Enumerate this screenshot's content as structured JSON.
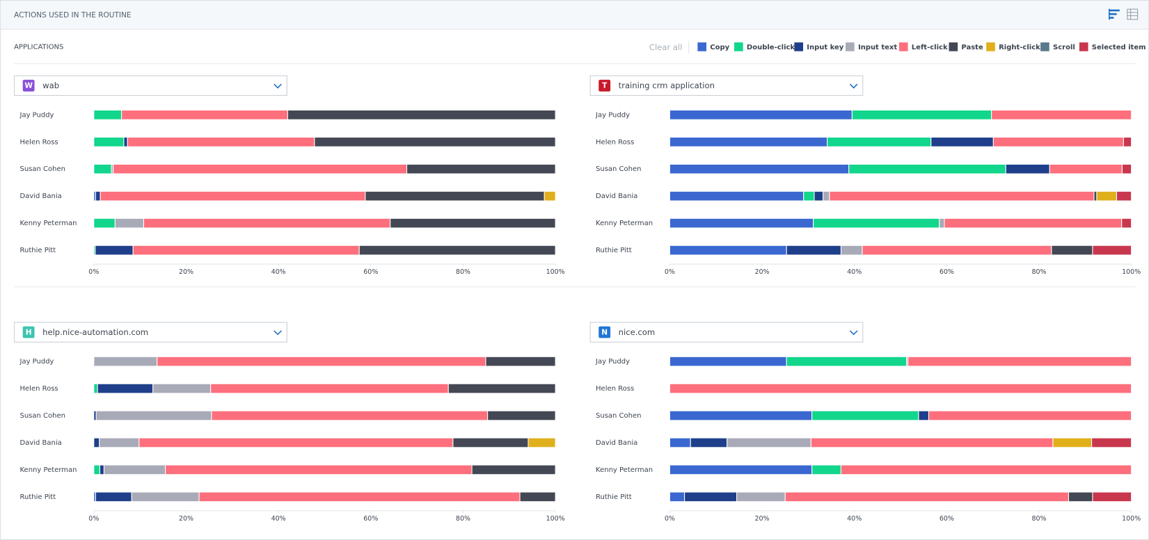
{
  "header": {
    "title": "ACTIONS USED IN THE ROUTINE"
  },
  "applications_label": "APPLICATIONS",
  "clear_all": "Clear all",
  "chart_data": [
    {
      "type": "bar",
      "orientation": "horizontal",
      "stacked": true,
      "title": "wab",
      "icon": "W",
      "icon_color": "#8a4fd8",
      "categories": [
        "Jay Puddy",
        "Helen Ross",
        "Susan Cohen",
        "David Bania",
        "Kenny Peterman",
        "Ruthie Pitt"
      ],
      "xlim": [
        0,
        100
      ],
      "xticks": [
        {
          "value": 0,
          "label": "0%"
        },
        {
          "value": 20,
          "label": "20%"
        },
        {
          "value": 40,
          "label": "40%"
        },
        {
          "value": 60,
          "label": "60%"
        },
        {
          "value": 80,
          "label": "80%"
        },
        {
          "value": 100,
          "label": "100%"
        }
      ],
      "series": [
        {
          "name": "Copy",
          "color": "#3a68d0",
          "values": [
            0,
            0,
            0,
            0.4,
            0,
            0
          ]
        },
        {
          "name": "Double-click",
          "color": "#11d68c",
          "values": [
            6,
            6.5,
            3.8,
            0,
            4.6,
            0.3
          ]
        },
        {
          "name": "Input key",
          "color": "#1f3f8a",
          "values": [
            0,
            0.8,
            0,
            1.0,
            0,
            8.2
          ]
        },
        {
          "name": "Input text",
          "color": "#a8aab8",
          "values": [
            0,
            0,
            0.4,
            0,
            6.2,
            0
          ]
        },
        {
          "name": "Left-click",
          "color": "#fd6f7d",
          "values": [
            36,
            40.5,
            63.6,
            57.4,
            53.4,
            49
          ]
        },
        {
          "name": "Paste",
          "color": "#444854",
          "values": [
            58,
            52.2,
            32.2,
            38.8,
            35.8,
            42.5
          ]
        },
        {
          "name": "Right-click",
          "color": "#e0b01c",
          "values": [
            0,
            0,
            0,
            2.4,
            0,
            0
          ]
        },
        {
          "name": "Scroll",
          "color": "#587a8c",
          "values": [
            0,
            0,
            0,
            0,
            0,
            0
          ]
        },
        {
          "name": "Selected item",
          "color": "#c9374e",
          "values": [
            0,
            0,
            0,
            0,
            0,
            0
          ]
        }
      ]
    },
    {
      "type": "bar",
      "orientation": "horizontal",
      "stacked": true,
      "title": "training crm application",
      "icon": "T",
      "icon_color": "#c8192a",
      "categories": [
        "Jay Puddy",
        "Helen Ross",
        "Susan Cohen",
        "David Bania",
        "Kenny Peterman",
        "Ruthie Pitt"
      ],
      "xlim": [
        0,
        100
      ],
      "xticks": [
        {
          "value": 0,
          "label": "0%"
        },
        {
          "value": 20,
          "label": "20%"
        },
        {
          "value": 40,
          "label": "40%"
        },
        {
          "value": 60,
          "label": "60%"
        },
        {
          "value": 80,
          "label": "80%"
        },
        {
          "value": 100,
          "label": "100%"
        }
      ],
      "series": [
        {
          "name": "Copy",
          "color": "#3a68d0",
          "values": [
            39.5,
            34.1,
            38.8,
            29,
            31.1,
            25.3
          ]
        },
        {
          "name": "Double-click",
          "color": "#11d68c",
          "values": [
            30.2,
            22.5,
            34,
            2.3,
            27.3,
            0
          ]
        },
        {
          "name": "Input key",
          "color": "#1f3f8a",
          "values": [
            0,
            13.5,
            9.5,
            1.9,
            0,
            11.8
          ]
        },
        {
          "name": "Input text",
          "color": "#a8aab8",
          "values": [
            0,
            0,
            0,
            1.4,
            1.1,
            4.6
          ]
        },
        {
          "name": "Left-click",
          "color": "#fd6f7d",
          "values": [
            30.3,
            28.2,
            15.7,
            57.3,
            38.4,
            41
          ]
        },
        {
          "name": "Paste",
          "color": "#444854",
          "values": [
            0,
            0,
            0,
            0.6,
            0,
            8.9
          ]
        },
        {
          "name": "Right-click",
          "color": "#e0b01c",
          "values": [
            0,
            0,
            0,
            4.3,
            0,
            0
          ]
        },
        {
          "name": "Scroll",
          "color": "#587a8c",
          "values": [
            0,
            0,
            0,
            0,
            0,
            0
          ]
        },
        {
          "name": "Selected item",
          "color": "#c9374e",
          "values": [
            0,
            1.7,
            2,
            3.2,
            2.1,
            8.4
          ]
        }
      ]
    },
    {
      "type": "bar",
      "orientation": "horizontal",
      "stacked": true,
      "title": "help.nice-automation.com",
      "icon": "H",
      "icon_color": "#3cc4b0",
      "categories": [
        "Jay Puddy",
        "Helen Ross",
        "Susan Cohen",
        "David Bania",
        "Kenny Peterman",
        "Ruthie Pitt"
      ],
      "xlim": [
        0,
        100
      ],
      "xticks": [
        {
          "value": 0,
          "label": "0%"
        },
        {
          "value": 20,
          "label": "20%"
        },
        {
          "value": 40,
          "label": "40%"
        },
        {
          "value": 60,
          "label": "60%"
        },
        {
          "value": 80,
          "label": "80%"
        },
        {
          "value": 100,
          "label": "100%"
        }
      ],
      "series": [
        {
          "name": "Copy",
          "color": "#3a68d0",
          "values": [
            0,
            0,
            0,
            0,
            0,
            0.4
          ]
        },
        {
          "name": "Double-click",
          "color": "#11d68c",
          "values": [
            0,
            0.8,
            0,
            0,
            1.3,
            0
          ]
        },
        {
          "name": "Input key",
          "color": "#1f3f8a",
          "values": [
            0,
            12,
            0.5,
            1.2,
            0.9,
            7.8
          ]
        },
        {
          "name": "Input text",
          "color": "#a8aab8",
          "values": [
            13.7,
            12.5,
            25,
            8.6,
            13.3,
            14.6
          ]
        },
        {
          "name": "Left-click",
          "color": "#fd6f7d",
          "values": [
            71.2,
            51.5,
            59.8,
            68,
            66.4,
            69.5
          ]
        },
        {
          "name": "Paste",
          "color": "#444854",
          "values": [
            15.1,
            23.2,
            14.7,
            16.3,
            18.1,
            7.7
          ]
        },
        {
          "name": "Right-click",
          "color": "#e0b01c",
          "values": [
            0,
            0,
            0,
            5.9,
            0,
            0
          ]
        },
        {
          "name": "Scroll",
          "color": "#587a8c",
          "values": [
            0,
            0,
            0,
            0,
            0,
            0
          ]
        },
        {
          "name": "Selected item",
          "color": "#c9374e",
          "values": [
            0,
            0,
            0,
            0,
            0,
            0
          ]
        }
      ]
    },
    {
      "type": "bar",
      "orientation": "horizontal",
      "stacked": true,
      "title": "nice.com",
      "icon": "N",
      "icon_color": "#1f77d4",
      "categories": [
        "Jay Puddy",
        "Helen Ross",
        "Susan Cohen",
        "David Bania",
        "Kenny Peterman",
        "Ruthie Pitt"
      ],
      "xlim": [
        0,
        100
      ],
      "xticks": [
        {
          "value": 0,
          "label": "0%"
        },
        {
          "value": 20,
          "label": "20%"
        },
        {
          "value": 40,
          "label": "40%"
        },
        {
          "value": 60,
          "label": "60%"
        },
        {
          "value": 80,
          "label": "80%"
        },
        {
          "value": 100,
          "label": "100%"
        }
      ],
      "series": [
        {
          "name": "Copy",
          "color": "#3a68d0",
          "values": [
            25.3,
            0,
            30.8,
            4.5,
            30.8,
            3.2
          ]
        },
        {
          "name": "Double-click",
          "color": "#11d68c",
          "values": [
            26,
            0,
            23.1,
            0,
            6.3,
            0
          ]
        },
        {
          "name": "Input key",
          "color": "#1f3f8a",
          "values": [
            0,
            0,
            2.2,
            7.9,
            0,
            11.3
          ]
        },
        {
          "name": "Input text",
          "color": "#a8aab8",
          "values": [
            0.3,
            0,
            0,
            18.2,
            0,
            10.5
          ]
        },
        {
          "name": "Left-click",
          "color": "#fd6f7d",
          "values": [
            48.4,
            100,
            43.9,
            52.4,
            62.9,
            61.4
          ]
        },
        {
          "name": "Paste",
          "color": "#444854",
          "values": [
            0,
            0,
            0,
            0,
            0,
            5.2
          ]
        },
        {
          "name": "Right-click",
          "color": "#e0b01c",
          "values": [
            0,
            0,
            0,
            8.4,
            0,
            0
          ]
        },
        {
          "name": "Scroll",
          "color": "#587a8c",
          "values": [
            0,
            0,
            0,
            0,
            0,
            0
          ]
        },
        {
          "name": "Selected item",
          "color": "#c9374e",
          "values": [
            0,
            0,
            0,
            8.6,
            0,
            8.4
          ]
        }
      ]
    }
  ]
}
